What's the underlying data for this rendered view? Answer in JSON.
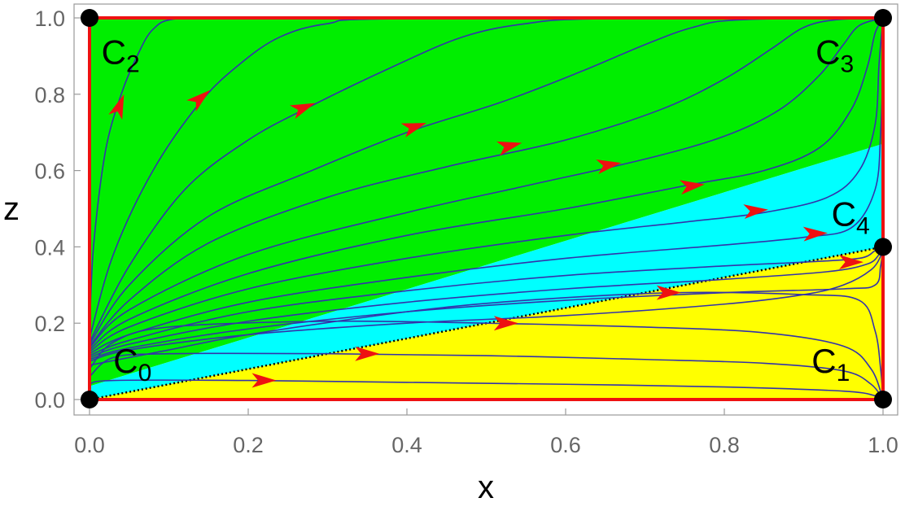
{
  "chart_data": {
    "type": "phase-portrait",
    "xlabel": "x",
    "ylabel": "z",
    "xlim": [
      0,
      1
    ],
    "ylim": [
      0,
      1
    ],
    "xticks": [
      "0.0",
      "0.2",
      "0.4",
      "0.6",
      "0.8",
      "1.0"
    ],
    "yticks": [
      "0.0",
      "0.2",
      "0.4",
      "0.6",
      "0.8",
      "1.0"
    ],
    "colors": {
      "green_region": "#00ee00",
      "cyan_region": "#00ffff",
      "yellow_region": "#ffff00",
      "boundary": "#ee1111",
      "streamline": "#3333aa",
      "arrow": "#ee1111",
      "point": "#000000"
    },
    "regions": [
      {
        "color": "green",
        "polygon": [
          [
            0,
            0
          ],
          [
            0,
            1
          ],
          [
            1,
            1
          ],
          [
            1,
            0.67
          ],
          [
            0,
            0.035
          ]
        ]
      },
      {
        "color": "cyan",
        "polygon": [
          [
            0,
            0
          ],
          [
            0,
            0.035
          ],
          [
            1,
            0.67
          ],
          [
            1,
            0.4
          ]
        ]
      },
      {
        "color": "yellow",
        "polygon": [
          [
            0,
            0
          ],
          [
            1,
            0.4
          ],
          [
            1,
            0
          ]
        ]
      }
    ],
    "separatrix": {
      "style": "dotted",
      "from": [
        0,
        0
      ],
      "to": [
        1,
        0.4
      ]
    },
    "critical_points": [
      {
        "base": "C",
        "sub": "0",
        "x": 0,
        "y": 0,
        "label_x": 0.03,
        "label_y": 0.07
      },
      {
        "base": "C",
        "sub": "1",
        "x": 1,
        "y": 0,
        "label_x": 0.91,
        "label_y": 0.07
      },
      {
        "base": "C",
        "sub": "2",
        "x": 0,
        "y": 1,
        "label_x": 0.015,
        "label_y": 0.88
      },
      {
        "base": "C",
        "sub": "3",
        "x": 1,
        "y": 1,
        "label_x": 0.915,
        "label_y": 0.88
      },
      {
        "base": "C",
        "sub": "4",
        "x": 1,
        "y": 0.4,
        "label_x": 0.935,
        "label_y": 0.455
      }
    ],
    "streamlines": [
      {
        "points": [
          [
            0,
            0.17
          ],
          [
            0.005,
            0.4
          ],
          [
            0.02,
            0.65
          ],
          [
            0.04,
            0.8
          ],
          [
            0.06,
            0.9
          ],
          [
            0.08,
            0.97
          ],
          [
            0.11,
            0.998
          ],
          [
            0.2,
            1.0
          ],
          [
            1,
            1.0
          ]
        ],
        "arrows": [
          [
            0.038,
            0.77,
            0.02,
            0.11
          ]
        ]
      },
      {
        "points": [
          [
            0,
            0.16
          ],
          [
            0.03,
            0.38
          ],
          [
            0.08,
            0.6
          ],
          [
            0.14,
            0.78
          ],
          [
            0.19,
            0.88
          ],
          [
            0.24,
            0.95
          ],
          [
            0.3,
            0.985
          ],
          [
            0.4,
            0.998
          ],
          [
            1,
            1.0
          ]
        ],
        "arrows": [
          [
            0.14,
            0.79,
            0.04,
            0.07
          ]
        ]
      },
      {
        "points": [
          [
            0,
            0.15
          ],
          [
            0.05,
            0.35
          ],
          [
            0.12,
            0.55
          ],
          [
            0.2,
            0.68
          ],
          [
            0.28,
            0.77
          ],
          [
            0.38,
            0.87
          ],
          [
            0.47,
            0.95
          ],
          [
            0.55,
            0.985
          ],
          [
            0.65,
            0.998
          ],
          [
            1,
            1.0
          ]
        ],
        "arrows": [
          [
            0.27,
            0.765,
            0.06,
            0.05
          ]
        ]
      },
      {
        "points": [
          [
            0,
            0.145
          ],
          [
            0.05,
            0.3
          ],
          [
            0.15,
            0.48
          ],
          [
            0.28,
            0.6
          ],
          [
            0.4,
            0.7
          ],
          [
            0.52,
            0.78
          ],
          [
            0.62,
            0.86
          ],
          [
            0.7,
            0.93
          ],
          [
            0.76,
            0.975
          ],
          [
            0.82,
            0.995
          ],
          [
            1,
            1.0
          ]
        ],
        "arrows": [
          [
            0.41,
            0.715,
            0.06,
            0.04
          ]
        ]
      },
      {
        "points": [
          [
            0,
            0.14
          ],
          [
            0.05,
            0.26
          ],
          [
            0.15,
            0.41
          ],
          [
            0.3,
            0.53
          ],
          [
            0.45,
            0.61
          ],
          [
            0.6,
            0.68
          ],
          [
            0.72,
            0.76
          ],
          [
            0.8,
            0.84
          ],
          [
            0.86,
            0.92
          ],
          [
            0.9,
            0.975
          ],
          [
            0.94,
            0.995
          ],
          [
            1,
            1.0
          ]
        ],
        "arrows": [
          [
            0.53,
            0.665,
            0.06,
            0.03
          ]
        ]
      },
      {
        "points": [
          [
            0,
            0.135
          ],
          [
            0.05,
            0.235
          ],
          [
            0.2,
            0.38
          ],
          [
            0.4,
            0.49
          ],
          [
            0.55,
            0.56
          ],
          [
            0.7,
            0.63
          ],
          [
            0.8,
            0.69
          ],
          [
            0.87,
            0.76
          ],
          [
            0.92,
            0.85
          ],
          [
            0.95,
            0.93
          ],
          [
            0.97,
            0.98
          ],
          [
            1,
            1.0
          ]
        ],
        "arrows": [
          [
            0.655,
            0.615,
            0.06,
            0.02
          ]
        ]
      },
      {
        "points": [
          [
            0,
            0.13
          ],
          [
            0.05,
            0.21
          ],
          [
            0.2,
            0.33
          ],
          [
            0.4,
            0.43
          ],
          [
            0.6,
            0.5
          ],
          [
            0.75,
            0.56
          ],
          [
            0.85,
            0.6
          ],
          [
            0.92,
            0.66
          ],
          [
            0.96,
            0.76
          ],
          [
            0.98,
            0.87
          ],
          [
            0.99,
            0.96
          ],
          [
            1,
            1.0
          ]
        ],
        "arrows": [
          [
            0.76,
            0.56,
            0.06,
            0.015
          ]
        ]
      },
      {
        "points": [
          [
            0,
            0.125
          ],
          [
            0.05,
            0.19
          ],
          [
            0.2,
            0.29
          ],
          [
            0.4,
            0.37
          ],
          [
            0.6,
            0.43
          ],
          [
            0.75,
            0.465
          ],
          [
            0.85,
            0.49
          ],
          [
            0.93,
            0.53
          ],
          [
            0.97,
            0.6
          ],
          [
            0.99,
            0.72
          ],
          [
            0.995,
            0.88
          ],
          [
            1,
            1.0
          ]
        ],
        "arrows": [
          [
            0.84,
            0.495,
            0.06,
            0.01
          ]
        ]
      },
      {
        "points": [
          [
            0,
            0.12
          ],
          [
            0.05,
            0.17
          ],
          [
            0.2,
            0.255
          ],
          [
            0.4,
            0.32
          ],
          [
            0.6,
            0.37
          ],
          [
            0.8,
            0.405
          ],
          [
            0.9,
            0.425
          ],
          [
            0.96,
            0.45
          ],
          [
            0.99,
            0.55
          ],
          [
            0.997,
            0.7
          ],
          [
            1,
            0.9
          ],
          [
            1,
            1.0
          ]
        ],
        "arrows": [
          [
            0.915,
            0.435,
            0.06,
            0.005
          ]
        ]
      },
      {
        "points": [
          [
            0,
            0.115
          ],
          [
            0.05,
            0.155
          ],
          [
            0.2,
            0.23
          ],
          [
            0.4,
            0.285
          ],
          [
            0.6,
            0.325
          ],
          [
            0.8,
            0.35
          ],
          [
            0.9,
            0.36
          ],
          [
            0.97,
            0.37
          ],
          [
            0.99,
            0.39
          ],
          [
            1,
            0.4
          ]
        ],
        "arrows": []
      },
      {
        "points": [
          [
            0,
            0.11
          ],
          [
            0.05,
            0.145
          ],
          [
            0.2,
            0.205
          ],
          [
            0.4,
            0.255
          ],
          [
            0.6,
            0.29
          ],
          [
            0.8,
            0.315
          ],
          [
            0.93,
            0.335
          ],
          [
            0.98,
            0.355
          ],
          [
            0.995,
            0.38
          ],
          [
            1,
            0.4
          ]
        ],
        "arrows": [
          [
            0.96,
            0.36,
            0.06,
            0.0
          ]
        ]
      },
      {
        "points": [
          [
            0,
            0.105
          ],
          [
            0.05,
            0.135
          ],
          [
            0.2,
            0.185
          ],
          [
            0.4,
            0.23
          ],
          [
            0.6,
            0.26
          ],
          [
            0.8,
            0.28
          ],
          [
            0.95,
            0.29
          ],
          [
            0.99,
            0.3
          ],
          [
            0.997,
            0.35
          ],
          [
            1,
            0.4
          ]
        ],
        "arrows": []
      },
      {
        "points": [
          [
            0,
            0.1
          ],
          [
            0.05,
            0.13
          ],
          [
            0.2,
            0.17
          ],
          [
            0.4,
            0.2
          ],
          [
            0.6,
            0.22
          ],
          [
            0.8,
            0.25
          ],
          [
            0.9,
            0.275
          ],
          [
            0.95,
            0.3
          ],
          [
            0.985,
            0.34
          ],
          [
            0.998,
            0.38
          ],
          [
            1,
            0.4
          ]
        ],
        "arrows": []
      },
      {
        "points": [
          [
            0,
            0.09
          ],
          [
            0.1,
            0.13
          ],
          [
            0.2,
            0.17
          ],
          [
            0.4,
            0.23
          ],
          [
            0.55,
            0.26
          ],
          [
            0.74,
            0.28
          ],
          [
            0.9,
            0.275
          ],
          [
            0.97,
            0.26
          ],
          [
            0.99,
            0.18
          ],
          [
            0.997,
            0.08
          ],
          [
            1,
            0
          ]
        ],
        "arrows": [
          [
            0.73,
            0.28,
            0.06,
            0.0
          ]
        ]
      },
      {
        "points": [
          [
            0,
            0.08
          ],
          [
            0.03,
            0.15
          ],
          [
            0.1,
            0.19
          ],
          [
            0.3,
            0.205
          ],
          [
            0.5,
            0.2
          ],
          [
            0.7,
            0.19
          ],
          [
            0.85,
            0.175
          ],
          [
            0.95,
            0.14
          ],
          [
            0.985,
            0.08
          ],
          [
            1,
            0
          ]
        ],
        "arrows": [
          [
            0.525,
            0.2,
            0.06,
            0.0
          ]
        ]
      },
      {
        "points": [
          [
            0,
            0.06
          ],
          [
            0.03,
            0.11
          ],
          [
            0.1,
            0.12
          ],
          [
            0.3,
            0.12
          ],
          [
            0.5,
            0.115
          ],
          [
            0.7,
            0.105
          ],
          [
            0.85,
            0.095
          ],
          [
            0.95,
            0.075
          ],
          [
            0.985,
            0.04
          ],
          [
            1,
            0
          ]
        ],
        "arrows": [
          [
            0.35,
            0.12,
            0.06,
            0.0
          ]
        ]
      },
      {
        "points": [
          [
            0,
            0.04
          ],
          [
            0.03,
            0.05
          ],
          [
            0.2,
            0.05
          ],
          [
            0.4,
            0.045
          ],
          [
            0.6,
            0.04
          ],
          [
            0.8,
            0.033
          ],
          [
            0.95,
            0.022
          ],
          [
            0.99,
            0.01
          ],
          [
            1,
            0
          ]
        ],
        "arrows": [
          [
            0.22,
            0.05,
            0.06,
            0.0
          ]
        ]
      }
    ]
  }
}
